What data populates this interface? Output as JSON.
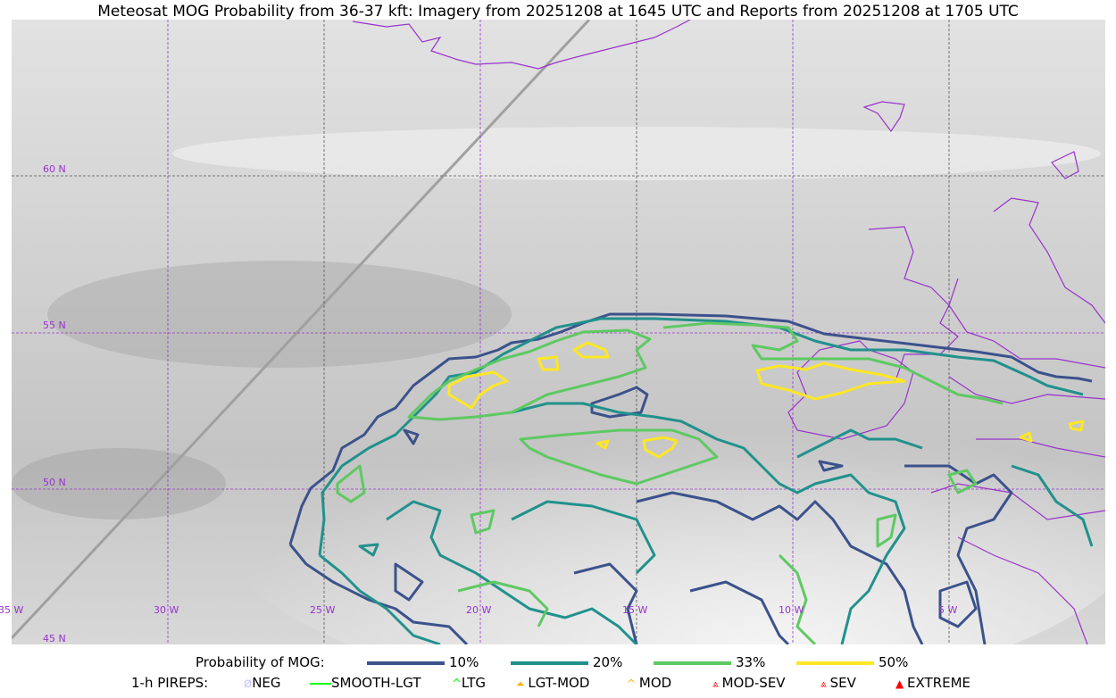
{
  "title": "Meteosat MOG Probability from 36-37 kft: Imagery from 20251208 at 1645 UTC and Reports from 20251208 at 1705 UTC",
  "grid": {
    "latitudes": [
      "60 N",
      "55 N",
      "50 N",
      "45 N"
    ],
    "longitudes": [
      "35 W",
      "30 W",
      "25 W",
      "20 W",
      "15 W",
      "10 W",
      "5 W"
    ],
    "color": "#9932cc"
  },
  "legend_probability": {
    "label": "Probability of MOG:",
    "items": [
      {
        "label": "10%",
        "color": "#3b528b"
      },
      {
        "label": "20%",
        "color": "#21918c"
      },
      {
        "label": "33%",
        "color": "#5ec962"
      },
      {
        "label": "50%",
        "color": "#fde725"
      }
    ]
  },
  "legend_pireps": {
    "label": "1-h PIREPS:",
    "items": [
      {
        "label": "NEG",
        "icon": "neg-icon",
        "color": "#c8c8ff"
      },
      {
        "label": "SMOOTH-LGT",
        "icon": "smooth-lgt-icon",
        "color": "#00ff00"
      },
      {
        "label": "LTG",
        "icon": "ltg-icon",
        "color": "#00ff00"
      },
      {
        "label": "LGT-MOD",
        "icon": "lgt-mod-icon",
        "color": "#ffb000"
      },
      {
        "label": "MOD",
        "icon": "mod-icon",
        "color": "#ffb000"
      },
      {
        "label": "MOD-SEV",
        "icon": "mod-sev-icon",
        "color": "#ff2020"
      },
      {
        "label": "SEV",
        "icon": "sev-icon",
        "color": "#ff2020"
      },
      {
        "label": "EXTREME",
        "icon": "extreme-icon",
        "color": "#ff0000"
      }
    ]
  }
}
